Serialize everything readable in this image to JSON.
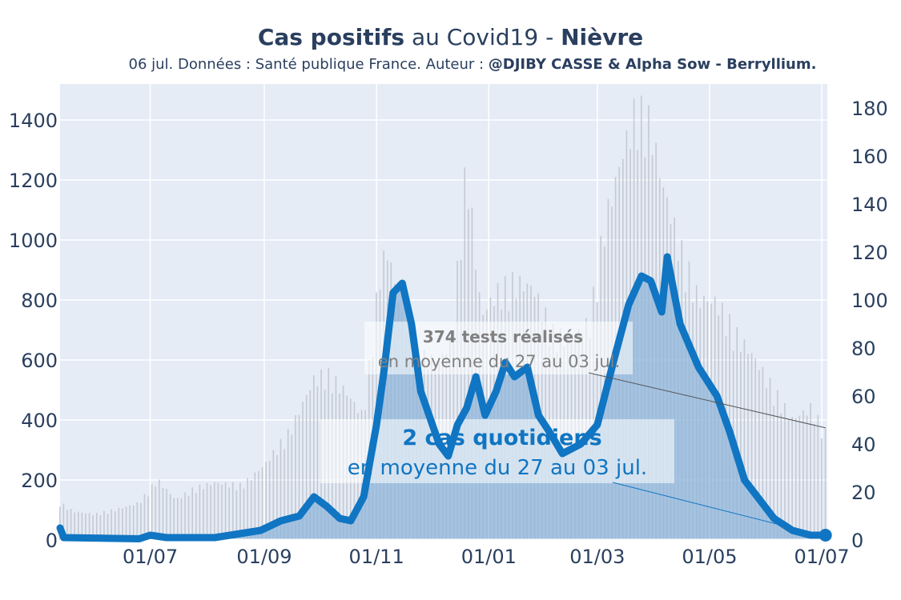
{
  "title": {
    "bold1": "Cas positifs",
    "mid": " au Covid19 - ",
    "bold2": "Nièvre"
  },
  "subtitle": {
    "text": "06 jul. Données : Santé publique France. Auteur : ",
    "author": "@DJIBY CASSE & Alpha Sow - Berryllium."
  },
  "annotations": {
    "tests_bold": "374 tests réalisés",
    "tests_text": "en moyenne du 27 au 03 jul.",
    "cases_bold": "2 cas quotidiens",
    "cases_text": "en moyenne du 27 au 03 jul."
  },
  "colors": {
    "plot_bg": "#e5ecf6",
    "cases_line": "#1075c2",
    "cases_fill": "#8fb6da",
    "tests_bars": "#c4c9d3",
    "tests_text": "#808080",
    "cases_text": "#1075c2"
  },
  "chart_data": {
    "type": "line",
    "x_ticks": [
      "01/07",
      "01/09",
      "01/11",
      "01/01",
      "01/03",
      "01/05",
      "01/07"
    ],
    "y_left_ticks": [
      "0",
      "200",
      "400",
      "600",
      "800",
      "1000",
      "1200",
      "1400"
    ],
    "y_right_ticks": [
      "0",
      "20",
      "40",
      "60",
      "80",
      "100",
      "120",
      "140",
      "160",
      "180"
    ],
    "ylim_left": [
      0,
      1520
    ],
    "ylim_right": [
      0,
      190
    ],
    "x_start": "2020-05-13",
    "x_end": "2021-07-04",
    "series": [
      {
        "kind": "bar",
        "axis": "left",
        "points": [
          [
            "2020-05-13",
            130
          ],
          [
            "2020-05-20",
            100
          ],
          [
            "2020-06-01",
            90
          ],
          [
            "2020-06-15",
            110
          ],
          [
            "2020-06-25",
            130
          ],
          [
            "2020-07-05",
            210
          ],
          [
            "2020-07-15",
            140
          ],
          [
            "2020-07-25",
            180
          ],
          [
            "2020-08-05",
            200
          ],
          [
            "2020-08-20",
            190
          ],
          [
            "2020-09-01",
            260
          ],
          [
            "2020-09-15",
            380
          ],
          [
            "2020-09-28",
            560
          ],
          [
            "2020-10-05",
            580
          ],
          [
            "2020-10-15",
            520
          ],
          [
            "2020-10-25",
            430
          ],
          [
            "2020-11-03",
            940
          ],
          [
            "2020-11-07",
            1010
          ],
          [
            "2020-11-15",
            780
          ],
          [
            "2020-11-25",
            640
          ],
          [
            "2020-12-05",
            620
          ],
          [
            "2020-12-12",
            700
          ],
          [
            "2020-12-20",
            1320
          ],
          [
            "2020-12-28",
            780
          ],
          [
            "2021-01-05",
            860
          ],
          [
            "2021-01-15",
            900
          ],
          [
            "2021-01-25",
            880
          ],
          [
            "2021-02-05",
            720
          ],
          [
            "2021-02-15",
            700
          ],
          [
            "2021-02-25",
            760
          ],
          [
            "2021-03-05",
            1100
          ],
          [
            "2021-03-15",
            1350
          ],
          [
            "2021-03-22",
            1500
          ],
          [
            "2021-03-30",
            1450
          ],
          [
            "2021-04-05",
            1250
          ],
          [
            "2021-04-15",
            1020
          ],
          [
            "2021-04-25",
            840
          ],
          [
            "2021-05-05",
            830
          ],
          [
            "2021-05-15",
            720
          ],
          [
            "2021-05-25",
            640
          ],
          [
            "2021-06-05",
            520
          ],
          [
            "2021-06-15",
            420
          ],
          [
            "2021-06-25",
            460
          ],
          [
            "2021-07-03",
            374
          ]
        ]
      },
      {
        "kind": "line",
        "axis": "right",
        "points": [
          [
            "2020-05-13",
            5
          ],
          [
            "2020-05-15",
            1
          ],
          [
            "2020-06-25",
            0.5
          ],
          [
            "2020-07-01",
            2
          ],
          [
            "2020-07-10",
            1
          ],
          [
            "2020-08-05",
            1
          ],
          [
            "2020-08-30",
            4
          ],
          [
            "2020-09-10",
            8
          ],
          [
            "2020-09-20",
            10
          ],
          [
            "2020-09-28",
            18
          ],
          [
            "2020-10-05",
            14
          ],
          [
            "2020-10-12",
            9
          ],
          [
            "2020-10-18",
            8
          ],
          [
            "2020-10-25",
            18
          ],
          [
            "2020-11-01",
            48
          ],
          [
            "2020-11-05",
            70
          ],
          [
            "2020-11-10",
            103
          ],
          [
            "2020-11-15",
            107
          ],
          [
            "2020-11-20",
            90
          ],
          [
            "2020-11-25",
            62
          ],
          [
            "2020-12-05",
            40
          ],
          [
            "2020-12-10",
            35
          ],
          [
            "2020-12-15",
            48
          ],
          [
            "2020-12-20",
            55
          ],
          [
            "2020-12-25",
            68
          ],
          [
            "2020-12-30",
            52
          ],
          [
            "2021-01-05",
            62
          ],
          [
            "2021-01-10",
            74
          ],
          [
            "2021-01-15",
            68
          ],
          [
            "2021-01-22",
            72
          ],
          [
            "2021-01-28",
            52
          ],
          [
            "2021-02-03",
            45
          ],
          [
            "2021-02-10",
            36
          ],
          [
            "2021-02-20",
            40
          ],
          [
            "2021-03-01",
            48
          ],
          [
            "2021-03-10",
            75
          ],
          [
            "2021-03-18",
            98
          ],
          [
            "2021-03-25",
            110
          ],
          [
            "2021-03-30",
            108
          ],
          [
            "2021-04-05",
            95
          ],
          [
            "2021-04-08",
            118
          ],
          [
            "2021-04-15",
            90
          ],
          [
            "2021-04-25",
            72
          ],
          [
            "2021-05-05",
            60
          ],
          [
            "2021-05-12",
            45
          ],
          [
            "2021-05-20",
            25
          ],
          [
            "2021-05-28",
            17
          ],
          [
            "2021-06-05",
            9
          ],
          [
            "2021-06-15",
            4
          ],
          [
            "2021-06-25",
            2
          ],
          [
            "2021-07-03",
            2
          ]
        ]
      }
    ]
  }
}
